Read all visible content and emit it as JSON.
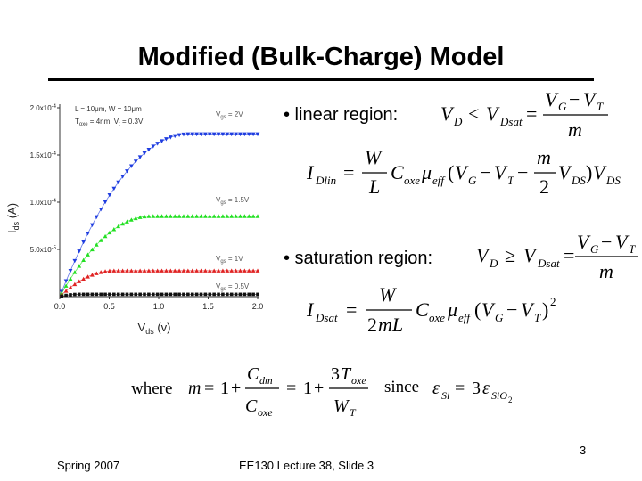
{
  "slide": {
    "title": "Modified (Bulk-Charge) Model",
    "bullets": [
      "• linear region:",
      "• saturation region:"
    ],
    "footer_left": "Spring 2007",
    "footer_center": "EE130 Lecture 38, Slide 3",
    "page_number": "3"
  },
  "equations": {
    "linear_condition": "V_D < V_Dsat = (V_G − V_T) / m",
    "linear_current": "I_Dlin = (W/L) C_oxe μ_eff (V_G − V_T − (m/2) V_DS) V_DS",
    "saturation_condition": "V_D ≥ V_Dsat = (V_G − V_T) / m",
    "saturation_current": "I_Dsat = W/(2mL) C_oxe μ_eff (V_G − V_T)^2",
    "m_definition": "where m = 1 + C_dm/C_oxe = 1 + 3T_oxe/W_T",
    "since_relation": "since ε_Si = 3ε_SiO2"
  },
  "chart_data": {
    "type": "scatter",
    "xlabel": "V_ds (v)",
    "ylabel": "I_ds (A)",
    "xlim": [
      0,
      2.0
    ],
    "ylim": [
      0,
      0.0002
    ],
    "x_ticks": [
      "0.0",
      "0.5",
      "1.0",
      "1.5",
      "2.0"
    ],
    "y_ticks": [
      "5.0x10-5",
      "1.0x10-4",
      "1.5x10-4",
      "2.0x10-4"
    ],
    "annotations": [
      "L = 10μm, W = 10μm",
      "Toxe = 4nm, Vt = 0.3V"
    ],
    "grid": false,
    "series": [
      {
        "name": "Vgs = 2V",
        "color": "#1f3de0",
        "marker": "triangle-down",
        "sat_current": 0.000172,
        "vdsat": 1.3
      },
      {
        "name": "Vgs = 1.5V",
        "color": "#22e022",
        "marker": "triangle-up",
        "sat_current": 8.52e-05,
        "vdsat": 0.92
      },
      {
        "name": "Vgs = 1V",
        "color": "#e02222",
        "marker": "triangle-up",
        "sat_current": 2.75e-05,
        "vdsat": 0.55
      },
      {
        "name": "Vgs = 0.5V",
        "color": "#111111",
        "marker": "square",
        "sat_current": 2.5e-06,
        "vdsat": 0.2
      }
    ]
  },
  "colors": {
    "text": "#000000",
    "background": "#ffffff"
  }
}
